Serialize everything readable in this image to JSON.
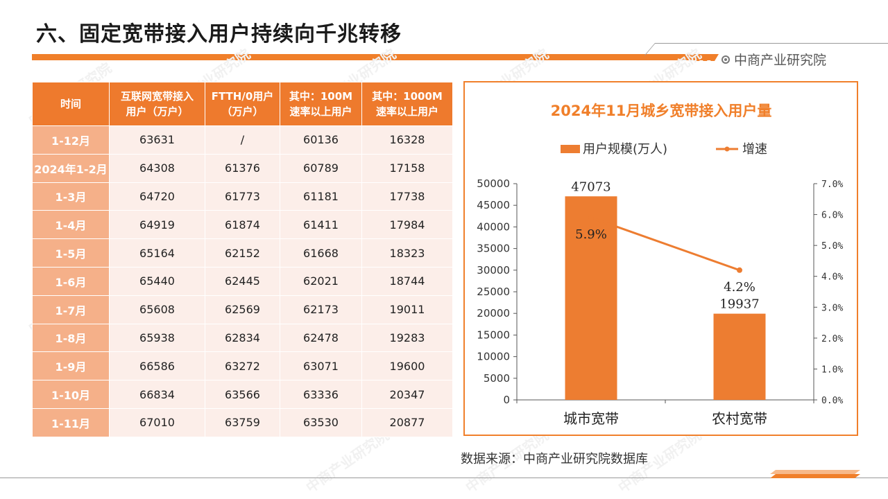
{
  "header": {
    "title": "六、固定宽带接入用户持续向千兆转移",
    "brand": "中商产业研究院",
    "watermark": "中商产业研究院"
  },
  "table": {
    "columns": [
      "时间",
      "互联网宽带接入\n用户（万户）",
      "FTTH/0用户\n（万户）",
      "其中：100M\n速率以上用户",
      "其中：1000M\n速率以上用户"
    ],
    "rows": [
      [
        "1-12月",
        "63631",
        "/",
        "60136",
        "16328"
      ],
      [
        "2024年1-2月",
        "64308",
        "61376",
        "60789",
        "17158"
      ],
      [
        "1-3月",
        "64720",
        "61773",
        "61181",
        "17738"
      ],
      [
        "1-4月",
        "64919",
        "61874",
        "61411",
        "17984"
      ],
      [
        "1-5月",
        "65164",
        "62152",
        "61668",
        "18323"
      ],
      [
        "1-6月",
        "65440",
        "62445",
        "62021",
        "18744"
      ],
      [
        "1-7月",
        "65608",
        "62569",
        "62173",
        "19011"
      ],
      [
        "1-8月",
        "65938",
        "62834",
        "62478",
        "19283"
      ],
      [
        "1-9月",
        "66586",
        "63272",
        "63071",
        "19600"
      ],
      [
        "1-10月",
        "66834",
        "63566",
        "63336",
        "20347"
      ],
      [
        "1-11月",
        "67010",
        "63759",
        "63530",
        "20877"
      ]
    ]
  },
  "chart_data": {
    "type": "bar",
    "title": "2024年11月城乡宽带接入用户量",
    "categories": [
      "城市宽带",
      "农村宽带"
    ],
    "series": [
      {
        "name": "用户规模(万人)",
        "type": "bar",
        "axis": "left",
        "values": [
          47073,
          19937
        ],
        "color": "#ED7D31"
      },
      {
        "name": "增速",
        "type": "line",
        "axis": "right",
        "values": [
          5.9,
          4.2
        ],
        "value_labels": [
          "5.9%",
          "4.2%"
        ],
        "color": "#ED7D31"
      }
    ],
    "y_left": {
      "min": 0,
      "max": 50000,
      "ticks": [
        "0",
        "5000",
        "10000",
        "15000",
        "20000",
        "25000",
        "30000",
        "35000",
        "40000",
        "45000",
        "50000"
      ]
    },
    "y_right": {
      "min": 0,
      "max": 7,
      "ticks": [
        "0.0%",
        "1.0%",
        "2.0%",
        "3.0%",
        "4.0%",
        "5.0%",
        "6.0%",
        "7.0%"
      ]
    },
    "grid": false,
    "legend": "top"
  },
  "footer": {
    "source": "数据来源：中商产业研究院数据库"
  }
}
